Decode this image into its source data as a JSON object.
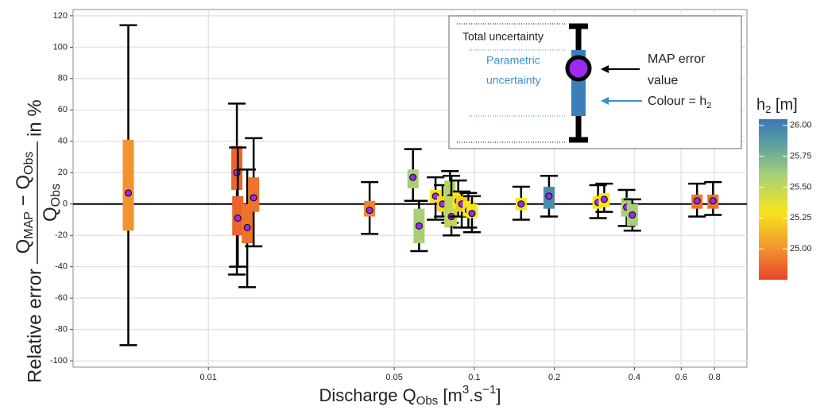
{
  "chart_data": {
    "type": "errorbar",
    "x_label": [
      "Discharge Q",
      "Obs",
      " [m",
      "3",
      ".s",
      "−1",
      "]"
    ],
    "y_label": {
      "prefix": "Relative error",
      "num": [
        "Q",
        "MAP",
        " − Q",
        "Obs"
      ],
      "den": [
        "Q",
        "Obs"
      ],
      "suffix": "in %"
    },
    "log_x": true,
    "grid": true,
    "hline": 0,
    "xlim": [
      0.0031,
      1.06
    ],
    "ylim": [
      -104,
      124
    ],
    "xticks": [
      0.01,
      0.05,
      0.1,
      0.2,
      0.4,
      0.6,
      0.8
    ],
    "yticks": [
      -100,
      -80,
      -60,
      -40,
      -20,
      0,
      20,
      40,
      60,
      80,
      100,
      120
    ],
    "x": [
      0.005,
      0.0128,
      0.0129,
      0.014,
      0.0148,
      0.0404,
      0.0588,
      0.062,
      0.0715,
      0.076,
      0.081,
      0.082,
      0.087,
      0.0897,
      0.095,
      0.098,
      0.15,
      0.191,
      0.292,
      0.308,
      0.374,
      0.393,
      0.688,
      0.79
    ],
    "values": [
      7,
      20,
      -9,
      -15,
      4,
      -4,
      17,
      -14,
      5,
      0,
      4,
      -8,
      2,
      0,
      -4,
      -6,
      0,
      5,
      1,
      3,
      -2,
      -7,
      2,
      2
    ],
    "total_low": [
      -90,
      -45,
      -40,
      -53,
      -27,
      -19,
      2,
      -30,
      -10,
      -8,
      -12,
      -20,
      -8,
      -15,
      -15,
      -18,
      -10,
      -8,
      -9,
      -5,
      -14,
      -17,
      -8,
      -7
    ],
    "total_high": [
      114,
      64,
      36,
      22,
      42,
      14,
      35,
      2,
      17,
      12,
      21,
      18,
      15,
      8,
      7,
      5,
      11,
      18,
      12,
      13,
      9,
      3,
      13,
      14
    ],
    "param_low": [
      -17,
      9,
      -20,
      -25,
      -5,
      -8,
      10,
      -25,
      1,
      -5,
      -15,
      -14,
      -3,
      -5,
      -8,
      -9,
      -4,
      -3,
      -3,
      -2,
      -8,
      -14,
      -3,
      -3
    ],
    "param_high": [
      41,
      37,
      5,
      0,
      17,
      2,
      22,
      -3,
      9,
      5,
      15,
      5,
      8,
      5,
      2,
      0,
      4,
      11,
      5,
      7,
      4,
      0,
      6,
      6
    ],
    "h2": [
      25.0,
      24.85,
      24.85,
      24.9,
      24.9,
      24.95,
      25.6,
      25.6,
      25.3,
      25.25,
      25.55,
      25.5,
      25.3,
      25.2,
      25.3,
      25.3,
      25.3,
      25.95,
      25.3,
      25.3,
      25.6,
      25.6,
      24.9,
      24.9
    ],
    "colorbar": {
      "title": [
        "h",
        "2",
        " [m]"
      ],
      "clim": [
        24.75,
        26.05
      ],
      "colorscale": [
        [
          24.75,
          "#e8432b"
        ],
        [
          25.0,
          "#f2932f"
        ],
        [
          25.3,
          "#f6e51e"
        ],
        [
          25.6,
          "#a8cf78"
        ],
        [
          25.85,
          "#5a9fa0"
        ],
        [
          26.05,
          "#3a79b8"
        ]
      ],
      "ticks": [
        {
          "value": 25.0,
          "label": "25.00"
        },
        {
          "value": 25.25,
          "label": "25.25"
        },
        {
          "value": 25.5,
          "label": "25.50"
        },
        {
          "value": 25.75,
          "label": "25.75"
        },
        {
          "value": 26.0,
          "label": "26.00"
        }
      ]
    },
    "legend": {
      "total": "Total uncertainty",
      "parametric": [
        "Parametric",
        "uncertainty"
      ],
      "map": [
        "MAP error",
        "value"
      ],
      "colour": [
        "Colour = h",
        "2"
      ]
    }
  }
}
